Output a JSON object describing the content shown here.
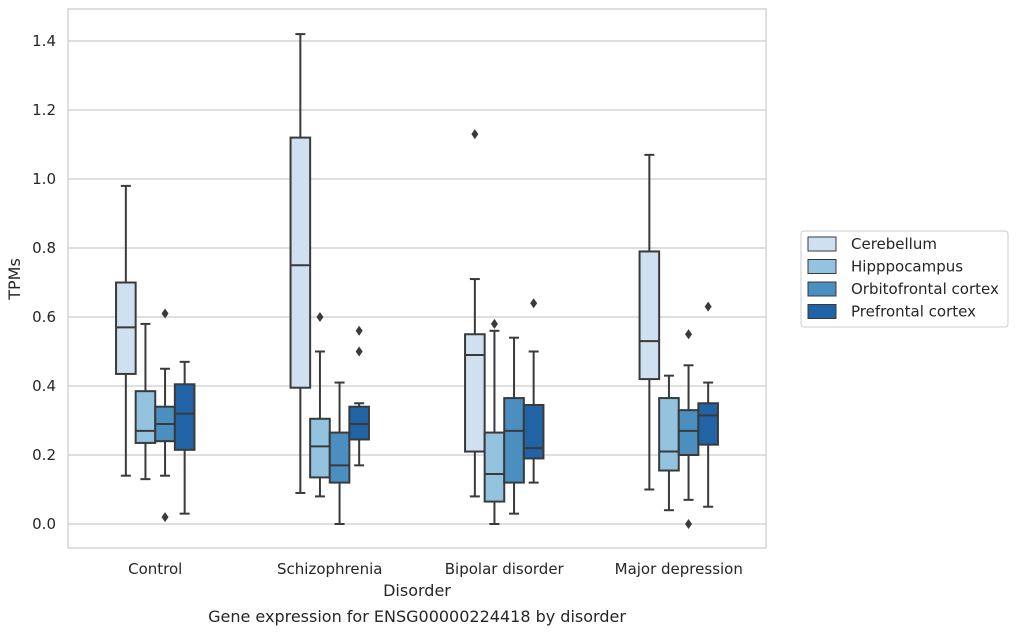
{
  "chart_data": {
    "type": "box",
    "title": "Gene expression for ENSG00000224418 by disorder",
    "xlabel": "Disorder",
    "ylabel": "TPMs",
    "ylim": [
      -0.07,
      1.49
    ],
    "yticks": [
      0.0,
      0.2,
      0.4,
      0.6,
      0.8,
      1.0,
      1.2,
      1.4
    ],
    "ytick_labels": [
      "0.0",
      "0.2",
      "0.4",
      "0.6",
      "0.8",
      "1.0",
      "1.2",
      "1.4"
    ],
    "grid": "horizontal",
    "legend_position": "right",
    "categories": [
      "Control",
      "Schizophrenia",
      "Bipolar disorder",
      "Major depression"
    ],
    "series": [
      {
        "name": "Cerebellum",
        "color": "#cfe0f0",
        "boxes": [
          {
            "whislo": 0.14,
            "q1": 0.435,
            "med": 0.57,
            "q3": 0.7,
            "whishi": 0.98,
            "fliers": []
          },
          {
            "whislo": 0.09,
            "q1": 0.395,
            "med": 0.75,
            "q3": 1.12,
            "whishi": 1.42,
            "fliers": []
          },
          {
            "whislo": 0.08,
            "q1": 0.21,
            "med": 0.49,
            "q3": 0.55,
            "whishi": 0.71,
            "fliers": [
              1.13
            ]
          },
          {
            "whislo": 0.1,
            "q1": 0.42,
            "med": 0.53,
            "q3": 0.79,
            "whishi": 1.07,
            "fliers": []
          }
        ]
      },
      {
        "name": "Hipppocampus",
        "color": "#94c3df",
        "boxes": [
          {
            "whislo": 0.13,
            "q1": 0.235,
            "med": 0.27,
            "q3": 0.385,
            "whishi": 0.58,
            "fliers": []
          },
          {
            "whislo": 0.08,
            "q1": 0.135,
            "med": 0.225,
            "q3": 0.305,
            "whishi": 0.5,
            "fliers": [
              0.6
            ]
          },
          {
            "whislo": 0.0,
            "q1": 0.065,
            "med": 0.145,
            "q3": 0.265,
            "whishi": 0.56,
            "fliers": [
              0.58
            ]
          },
          {
            "whislo": 0.04,
            "q1": 0.155,
            "med": 0.21,
            "q3": 0.365,
            "whishi": 0.43,
            "fliers": []
          }
        ]
      },
      {
        "name": "Orbitofrontal cortex",
        "color": "#4b8fc1",
        "boxes": [
          {
            "whislo": 0.14,
            "q1": 0.24,
            "med": 0.29,
            "q3": 0.34,
            "whishi": 0.45,
            "fliers": [
              0.61,
              0.02
            ]
          },
          {
            "whislo": 0.0,
            "q1": 0.12,
            "med": 0.17,
            "q3": 0.265,
            "whishi": 0.41,
            "fliers": []
          },
          {
            "whislo": 0.03,
            "q1": 0.12,
            "med": 0.27,
            "q3": 0.365,
            "whishi": 0.54,
            "fliers": []
          },
          {
            "whislo": 0.07,
            "q1": 0.2,
            "med": 0.27,
            "q3": 0.33,
            "whishi": 0.46,
            "fliers": [
              0.55,
              0.0
            ]
          }
        ]
      },
      {
        "name": "Prefrontal cortex",
        "color": "#2164a6",
        "boxes": [
          {
            "whislo": 0.03,
            "q1": 0.215,
            "med": 0.32,
            "q3": 0.405,
            "whishi": 0.47,
            "fliers": []
          },
          {
            "whislo": 0.17,
            "q1": 0.245,
            "med": 0.29,
            "q3": 0.34,
            "whishi": 0.35,
            "fliers": [
              0.56,
              0.5
            ]
          },
          {
            "whislo": 0.12,
            "q1": 0.19,
            "med": 0.22,
            "q3": 0.345,
            "whishi": 0.5,
            "fliers": [
              0.64
            ]
          },
          {
            "whislo": 0.05,
            "q1": 0.23,
            "med": 0.315,
            "q3": 0.35,
            "whishi": 0.41,
            "fliers": [
              0.63
            ]
          }
        ]
      }
    ],
    "colors": {
      "grid": "#cccccc",
      "frame": "#cccccc",
      "line": "#3a3a3a",
      "text": "#262626"
    }
  }
}
